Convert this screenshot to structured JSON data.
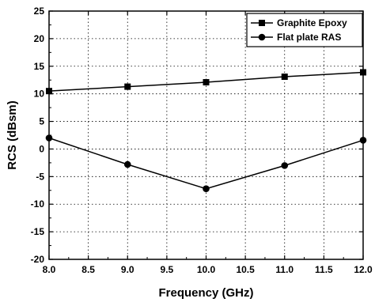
{
  "chart_data": {
    "type": "line",
    "xlabel": "Frequency (GHz)",
    "ylabel": "RCS (dBsm)",
    "xlim": [
      8.0,
      12.0
    ],
    "ylim": [
      -20,
      25
    ],
    "x_ticks": [
      8.0,
      8.5,
      9.0,
      9.5,
      10.0,
      10.5,
      11.0,
      11.5,
      12.0
    ],
    "x_tick_labels": [
      "8.0",
      "8.5",
      "9.0",
      "9.5",
      "10.0",
      "10.5",
      "11.0",
      "11.5",
      "12.0"
    ],
    "y_ticks": [
      -20,
      -15,
      -10,
      -5,
      0,
      5,
      10,
      15,
      20,
      25
    ],
    "y_tick_labels": [
      "-20",
      "-15",
      "-10",
      "-5",
      "0",
      "5",
      "10",
      "15",
      "20",
      "25"
    ],
    "grid": true,
    "legend_position": "top-right",
    "x": [
      8.0,
      9.0,
      10.0,
      11.0,
      12.0
    ],
    "series": [
      {
        "name": "Graphite Epoxy",
        "marker": "square",
        "values": [
          10.5,
          11.3,
          12.1,
          13.1,
          13.9
        ]
      },
      {
        "name": "Flat plate RAS",
        "marker": "circle",
        "values": [
          2.0,
          -2.8,
          -7.2,
          -3.0,
          1.6
        ]
      }
    ],
    "line_color": "#000000"
  }
}
